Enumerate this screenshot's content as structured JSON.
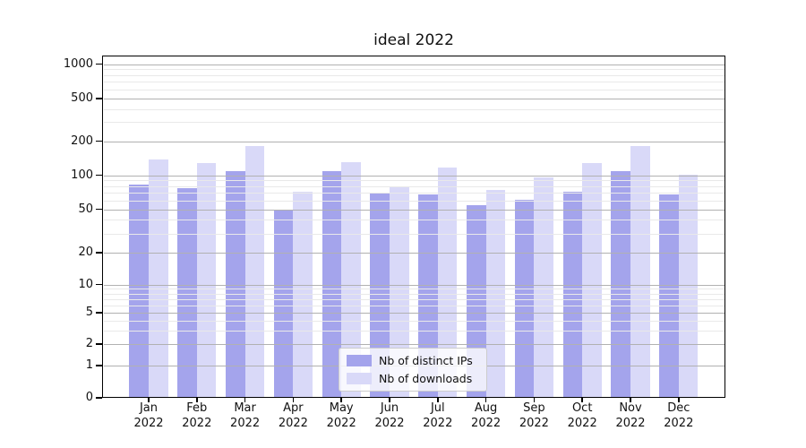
{
  "chart_data": {
    "type": "bar",
    "title": "ideal 2022",
    "categories": [
      "Jan 2022",
      "Feb 2022",
      "Mar 2022",
      "Apr 2022",
      "May 2022",
      "Jun 2022",
      "Jul 2022",
      "Aug 2022",
      "Sep 2022",
      "Oct 2022",
      "Nov 2022",
      "Dec 2022"
    ],
    "series": [
      {
        "name": "Nb of distinct IPs",
        "color": "#a4a4ec",
        "values": [
          83,
          77,
          109,
          49,
          108,
          69,
          68,
          54,
          61,
          71,
          108,
          67
        ]
      },
      {
        "name": "Nb of downloads",
        "color": "#d9d9f8",
        "values": [
          138,
          127,
          180,
          72,
          130,
          78,
          116,
          74,
          95,
          127,
          180,
          101
        ]
      }
    ],
    "xlabel": "",
    "ylabel": "",
    "yscale": "symlog",
    "ylim": [
      0,
      1000
    ],
    "yticks": [
      1000,
      500,
      200,
      100,
      50,
      20,
      10,
      5,
      2,
      1,
      0
    ],
    "grid": "horizontal major+minor, drawn above bars",
    "legend_position": "lower center"
  },
  "colors": {
    "major_grid": "#b1b1b1",
    "minor_grid": "#e9e9e9",
    "spine": "#000000",
    "background": "#ffffff"
  }
}
